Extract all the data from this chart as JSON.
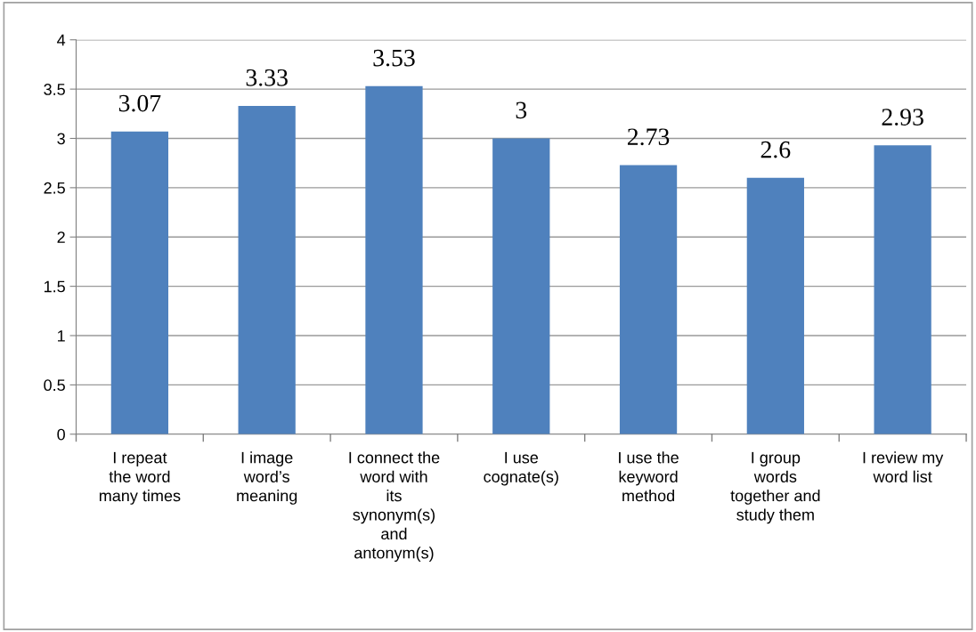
{
  "chart_data": {
    "type": "bar",
    "categories": [
      "I repeat\nthe word\nmany times",
      "I image\nword’s\nmeaning",
      "I connect the\nword with\nits\nsynonym(s)\nand\nantonym(s)",
      "I use\ncognate(s)",
      "I use the\nkeyword\nmethod",
      "I group\nwords\ntogether and\nstudy them",
      "I review my\nword list"
    ],
    "values": [
      3.07,
      3.33,
      3.53,
      3,
      2.73,
      2.6,
      2.93
    ],
    "color": "#4f81bd",
    "ylim": [
      0,
      4
    ],
    "yticks": [
      0,
      0.5,
      1,
      1.5,
      2,
      2.5,
      3,
      3.5,
      4
    ],
    "grid": "y",
    "data_labels": true
  }
}
